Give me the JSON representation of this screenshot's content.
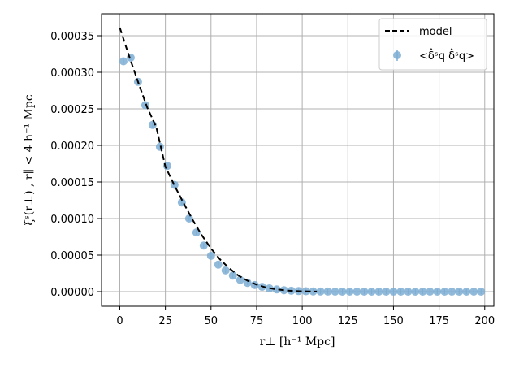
{
  "chart_data": {
    "type": "scatter",
    "title": "",
    "xlabel": "r⊥ [h⁻¹ Mpc]",
    "ylabel": "ξˢ(r⊥) , r∥ < 4 h⁻¹ Mpc",
    "xlim": [
      -10,
      205
    ],
    "ylim": [
      -2e-05,
      0.00038
    ],
    "grid": true,
    "legend_position": "top-right",
    "x_ticks": [
      0,
      25,
      50,
      75,
      100,
      125,
      150,
      175,
      200
    ],
    "x_tick_labels": [
      "0",
      "25",
      "50",
      "75",
      "100",
      "125",
      "150",
      "175",
      "200"
    ],
    "y_ticks": [
      0,
      5e-05,
      0.0001,
      0.00015,
      0.0002,
      0.00025,
      0.0003,
      0.00035
    ],
    "y_tick_labels": [
      "0.00000",
      "0.00005",
      "0.00010",
      "0.00015",
      "0.00020",
      "0.00025",
      "0.00030",
      "0.00035"
    ],
    "series": [
      {
        "name": "model",
        "style": "dashed-line",
        "color": "#000000",
        "x": [
          0,
          5,
          10,
          15,
          20,
          25,
          30,
          35,
          40,
          45,
          50,
          55,
          60,
          65,
          70,
          75,
          80,
          85,
          90,
          95,
          100,
          105,
          108
        ],
        "y": [
          0.000361,
          0.000323,
          0.000287,
          0.000252,
          0.000225,
          0.000171,
          0.000145,
          0.000121,
          9.8e-05,
          7.7e-05,
          5.9e-05,
          4.4e-05,
          3.2e-05,
          2.2e-05,
          1.5e-05,
          9.5e-06,
          5.8e-06,
          3.4e-06,
          1.9e-06,
          1e-06,
          5e-07,
          2e-07,
          1e-07
        ]
      },
      {
        "name": "<δ̂ˢq δ̂ˢq>",
        "style": "points-with-errorbars",
        "color": "#7eaed3",
        "x": [
          2,
          6,
          10,
          14,
          18,
          22,
          26,
          30,
          34,
          38,
          42,
          46,
          50,
          54,
          58,
          62,
          66,
          70,
          74,
          78,
          82,
          86,
          90,
          94,
          98,
          102,
          106,
          110,
          114,
          118,
          122,
          126,
          130,
          134,
          138,
          142,
          146,
          150,
          154,
          158,
          162,
          166,
          170,
          174,
          178,
          182,
          186,
          190,
          194,
          198
        ],
        "y": [
          0.000315,
          0.00032,
          0.000287,
          0.000255,
          0.000228,
          0.000198,
          0.000172,
          0.000146,
          0.000122,
          0.0001,
          8.1e-05,
          6.3e-05,
          4.9e-05,
          3.7e-05,
          2.9e-05,
          2.2e-05,
          1.6e-05,
          1.2e-05,
          9e-06,
          6.5e-06,
          4.5e-06,
          3e-06,
          2e-06,
          1.3e-06,
          8e-07,
          5e-07,
          3e-07,
          2e-07,
          1e-07,
          0,
          0,
          0,
          0,
          0,
          0,
          0,
          0,
          0,
          0,
          0,
          0,
          0,
          0,
          0,
          0,
          0,
          0,
          0,
          0,
          0
        ]
      }
    ]
  }
}
